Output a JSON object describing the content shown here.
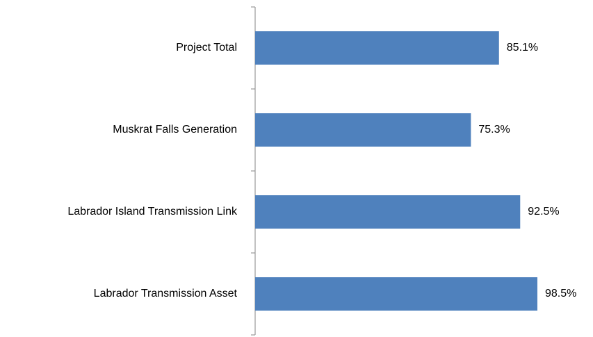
{
  "chart_data": {
    "type": "bar",
    "orientation": "horizontal",
    "categories": [
      "Project Total",
      "Muskrat Falls Generation",
      "Labrador Island Transmission Link",
      "Labrador Transmission Asset"
    ],
    "values": [
      85.1,
      75.3,
      92.5,
      98.5
    ],
    "value_labels": [
      "85.1%",
      "75.3%",
      "92.5%",
      "98.5%"
    ],
    "color": "#4f81bd"
  }
}
